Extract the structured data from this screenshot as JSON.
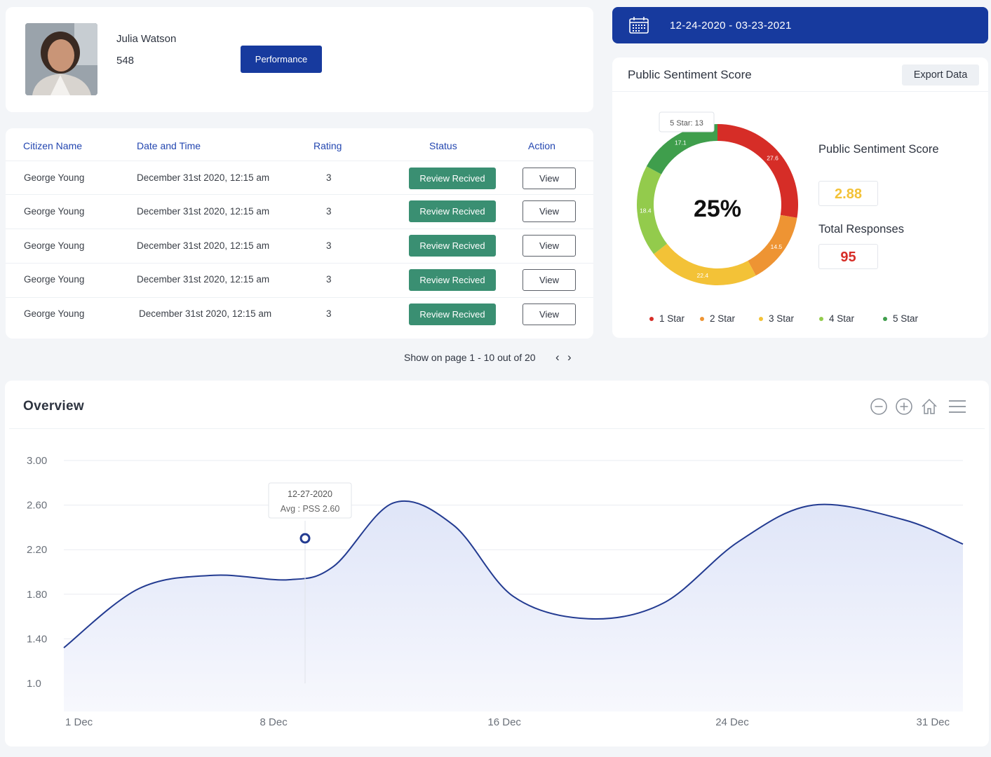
{
  "profile": {
    "name": "Julia Watson",
    "number": "548",
    "button_label": "Performance"
  },
  "table": {
    "headers": [
      "Citizen Name",
      "Date and Time",
      "Rating",
      "Status",
      "Action"
    ],
    "rows": [
      {
        "name": "George Young",
        "datetime": "December 31st 2020, 12:15 am",
        "rating": "3",
        "status": "Review Recived",
        "action": "View"
      },
      {
        "name": "George Young",
        "datetime": "December 31st 2020, 12:15 am",
        "rating": "3",
        "status": "Review Recived",
        "action": "View"
      },
      {
        "name": "George Young",
        "datetime": "December 31st 2020, 12:15 am",
        "rating": "3",
        "status": "Review Recived",
        "action": "View"
      },
      {
        "name": "George Young",
        "datetime": "December 31st 2020, 12:15 am",
        "rating": "3",
        "status": "Review Recived",
        "action": "View"
      },
      {
        "name": "George Young",
        "datetime": "December 31st 2020, 12:15 am",
        "rating": "3",
        "status": "Review Recived",
        "action": "View"
      }
    ]
  },
  "pagination": {
    "text": "Show on page 1 - 10 out of 20",
    "prev": "‹",
    "next": "›"
  },
  "date_range": "12-24-2020 - 03-23-2021",
  "sentiment": {
    "title": "Public Sentiment Score",
    "export_label": "Export Data",
    "center_value": "25%",
    "tooltip": "5 Star: 13",
    "score_label": "Public Sentiment Score",
    "score_value": "2.88",
    "responses_label": "Total Responses",
    "responses_value": "95",
    "legend": [
      "1 Star",
      "2 Star",
      "3 Star",
      "4 Star",
      "5 Star"
    ],
    "colors": [
      "#d62d27",
      "#ee9433",
      "#f3c237",
      "#93cb4c",
      "#3f9e4c"
    ]
  },
  "overview": {
    "title": "Overview",
    "tooltip_date": "12-27-2020",
    "tooltip_value": "Avg : PSS 2.60",
    "line_color": "#233b91"
  },
  "chart_data": [
    {
      "type": "pie",
      "title": "Public Sentiment Score",
      "categories": [
        "1 Star",
        "2 Star",
        "3 Star",
        "4 Star",
        "5 Star"
      ],
      "values": [
        27.6,
        14.5,
        22.4,
        18.4,
        17.1
      ],
      "center_label": "25%"
    },
    {
      "type": "area",
      "title": "Overview",
      "x_ticks": [
        "1 Dec",
        "8 Dec",
        "16 Dec",
        "24 Dec",
        "31 Dec"
      ],
      "y_ticks": [
        "3.00",
        "2.60",
        "2.20",
        "1.80",
        "1.40",
        "1.0"
      ],
      "ylim": [
        1.0,
        3.0
      ],
      "grid": true,
      "x": [
        0,
        2.5,
        5,
        7.5,
        9,
        11,
        13,
        15,
        17.5,
        20,
        22.5,
        25,
        28,
        30
      ],
      "y": [
        1.32,
        1.85,
        1.97,
        1.93,
        2.05,
        2.62,
        2.42,
        1.78,
        1.58,
        1.72,
        2.27,
        2.6,
        2.47,
        2.25
      ]
    }
  ]
}
